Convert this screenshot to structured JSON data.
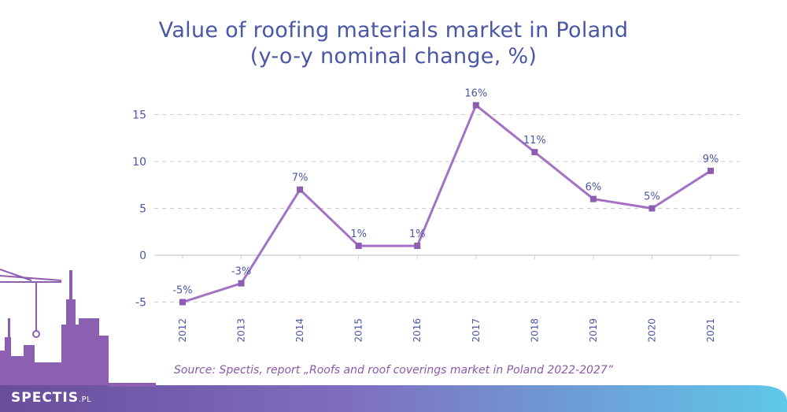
{
  "title_line1": "Value of roofing materials market in Poland",
  "title_line2": "(y-o-y nominal change, %)",
  "source": "Source: Spectis, report „Roofs and roof coverings market in Poland 2022-2027”",
  "brand": {
    "name": "SPECTIS",
    "suffix": ".PL"
  },
  "colors": {
    "title": "#4a56a6",
    "line": "#a372c4",
    "marker": "#8c5db0",
    "axis_text": "#4a56a6",
    "label_text": "#4a56a6",
    "grid": "#c9ccd6",
    "source": "#8a5aa8",
    "skyline": "#8d5fb0",
    "footer_left": "#6a4c9c",
    "footer_right": "#5ec8ea"
  },
  "chart_data": {
    "type": "line",
    "title": "Value of roofing materials market in Poland (y-o-y nominal change, %)",
    "x": [
      "2012",
      "2013",
      "2014",
      "2015",
      "2016",
      "2017",
      "2018",
      "2019",
      "2020",
      "2021"
    ],
    "series": [
      {
        "values": [
          -5,
          -3,
          7,
          1,
          1,
          16,
          11,
          6,
          5,
          9
        ]
      }
    ],
    "data_labels": [
      "-5%",
      "-3%",
      "7%",
      "1%",
      "1%",
      "16%",
      "11%",
      "6%",
      "5%",
      "9%"
    ],
    "yticks": [
      -5,
      0,
      5,
      10,
      15
    ],
    "ytick_labels": [
      "-5",
      "0",
      "5",
      "10",
      "15"
    ],
    "ylim": [
      -5.5,
      16
    ],
    "grid": true,
    "legend": false
  }
}
